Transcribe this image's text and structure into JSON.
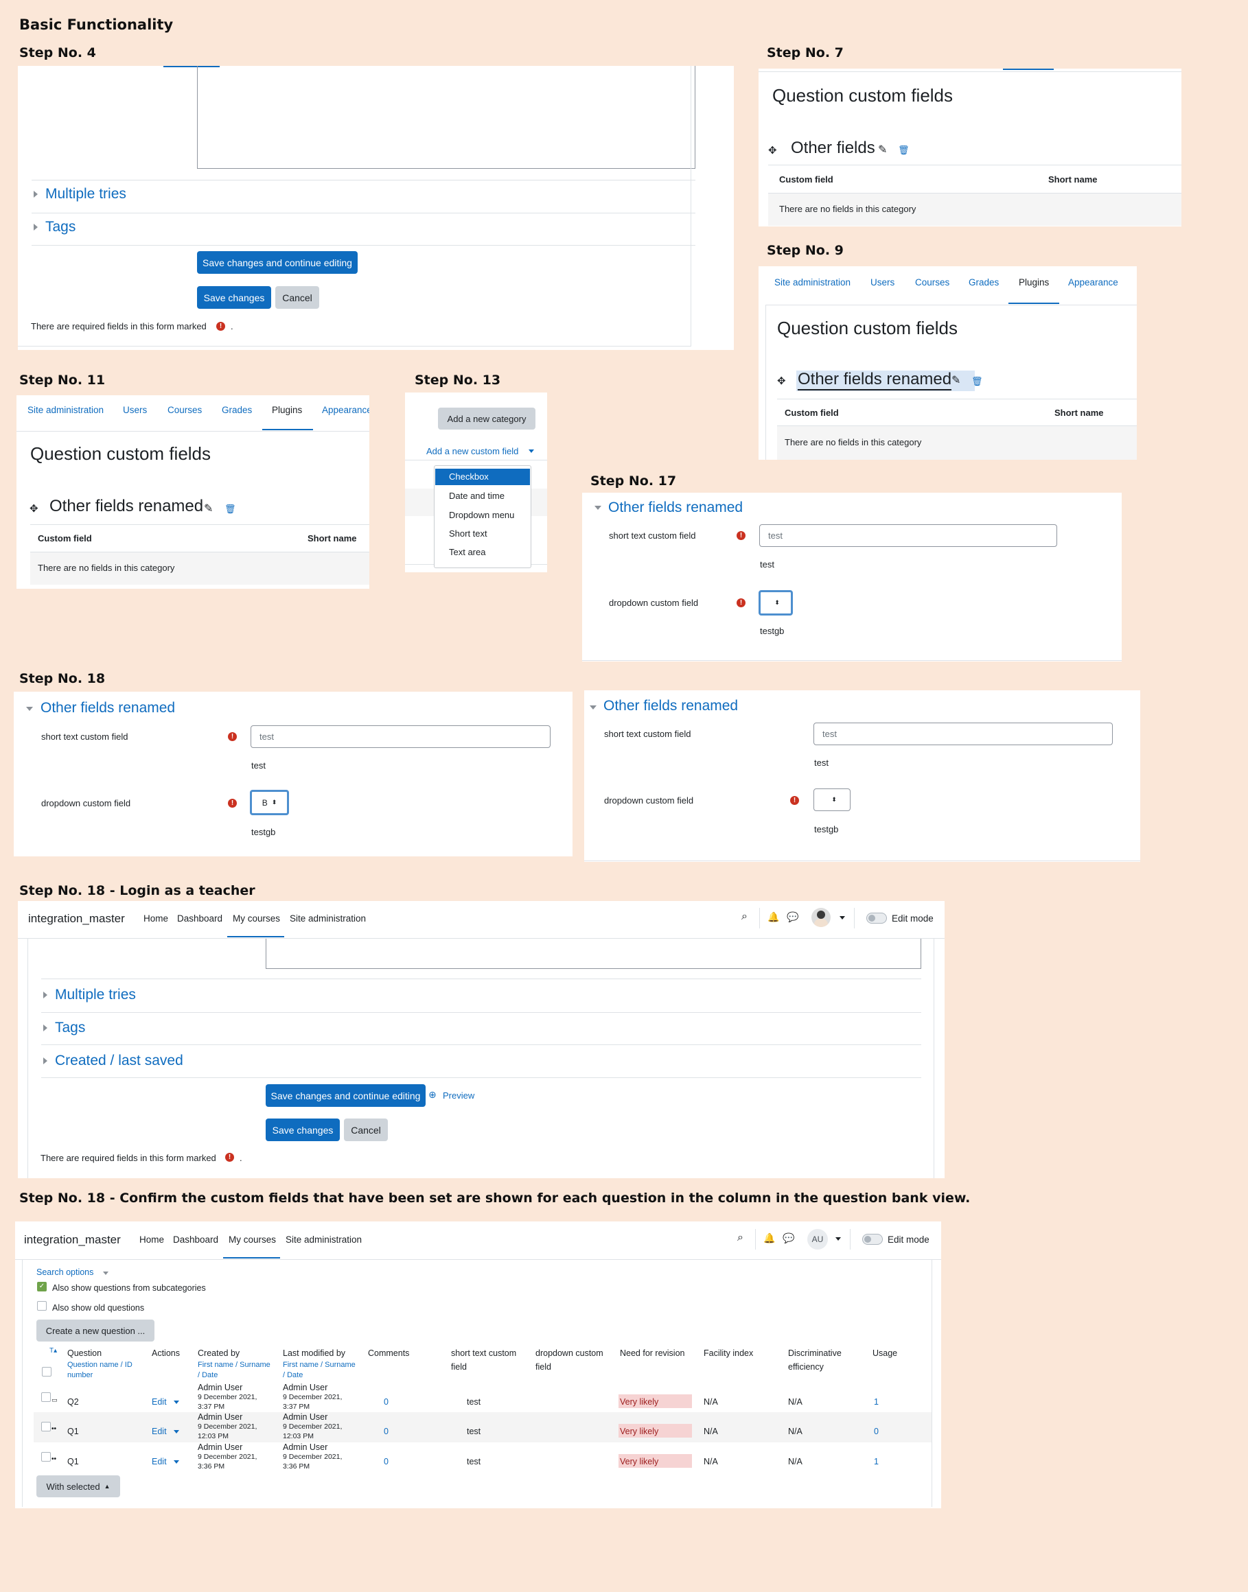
{
  "title": "Basic Functionality",
  "step4": {
    "heading": "Step No. 4",
    "multiple_tries": "Multiple tries",
    "tags": "Tags",
    "save_continue": "Save changes and continue editing",
    "save": "Save changes",
    "cancel": "Cancel",
    "required_note": "There are required fields in this form marked",
    "required_dot": "."
  },
  "step7": {
    "heading": "Step No. 7",
    "page_title": "Question custom fields",
    "category": "Other fields",
    "col_custom_field": "Custom field",
    "col_short_name": "Short name",
    "empty": "There are no fields in this category"
  },
  "step9": {
    "heading": "Step No. 9",
    "tabs": [
      "Site administration",
      "Users",
      "Courses",
      "Grades",
      "Plugins",
      "Appearance"
    ],
    "active_tab": "Plugins",
    "page_title": "Question custom fields",
    "category": "Other fields renamed",
    "col_custom_field": "Custom field",
    "col_short_name": "Short name",
    "empty": "There are no fields in this category"
  },
  "step11": {
    "heading": "Step No. 11",
    "tabs": [
      "Site administration",
      "Users",
      "Courses",
      "Grades",
      "Plugins",
      "Appearance"
    ],
    "page_title": "Question custom fields",
    "category": "Other fields renamed",
    "col_custom_field": "Custom field",
    "col_short_name": "Short name",
    "empty": "There are no fields in this category"
  },
  "step13": {
    "heading": "Step No. 13",
    "add_category": "Add a new category",
    "add_custom_field": "Add a new custom field",
    "menu": [
      "Checkbox",
      "Date and time",
      "Dropdown menu",
      "Short text",
      "Text area"
    ],
    "selected": "Checkbox"
  },
  "step17": {
    "heading": "Step No. 17",
    "section": "Other fields renamed",
    "short_text_label": "short text custom field",
    "short_text_value": "test",
    "short_text_help": "test",
    "dropdown_label": "dropdown custom field",
    "dropdown_value": "",
    "dropdown_help": "testgb"
  },
  "step18a": {
    "heading": "Step No. 18",
    "section": "Other fields renamed",
    "short_text_label": "short text custom field",
    "short_text_value": "test",
    "short_text_help": "test",
    "dropdown_label": "dropdown custom field",
    "dropdown_value": "B",
    "dropdown_help": "testgb"
  },
  "step18b": {
    "section": "Other fields renamed",
    "short_text_label": "short text custom field",
    "short_text_value": "test",
    "short_text_help": "test",
    "dropdown_label": "dropdown custom field",
    "dropdown_value": "",
    "dropdown_help": "testgb"
  },
  "step18teacher": {
    "heading": "Step No. 18 - Login as a teacher",
    "site": "integration_master",
    "nav": [
      "Home",
      "Dashboard",
      "My courses",
      "Site administration"
    ],
    "active_nav": "My courses",
    "edit_mode": "Edit mode",
    "multiple_tries": "Multiple tries",
    "tags": "Tags",
    "created": "Created / last saved",
    "save_continue": "Save changes and continue editing",
    "preview": "Preview",
    "save": "Save changes",
    "cancel": "Cancel",
    "required_note": "There are required fields in this form marked",
    "required_dot": "."
  },
  "step18bank": {
    "heading": "Step No. 18 - Confirm the custom fields that have been set are shown for each question in the column in the question bank view.",
    "site": "integration_master",
    "nav": [
      "Home",
      "Dashboard",
      "My courses",
      "Site administration"
    ],
    "edit_mode": "Edit mode",
    "avatar": "AU",
    "search_options": "Search options",
    "show_sub": "Also show questions from subcategories",
    "show_old": "Also show old questions",
    "create_new": "Create a new question ...",
    "headers": {
      "t": "T",
      "question": "Question",
      "question_sub1": "Question name / ID",
      "question_sub2": "number",
      "actions": "Actions",
      "created_by": "Created by",
      "created_sub1": "First name / Surname",
      "created_sub2": "/ Date",
      "modified_by": "Last modified by",
      "modified_sub1": "First name / Surname",
      "modified_sub2": "/ Date",
      "comments": "Comments",
      "short_text": "short text custom",
      "short_text2": "field",
      "dropdown": "dropdown custom",
      "dropdown2": "field",
      "need_revision": "Need for revision",
      "facility": "Facility index",
      "disc": "Discriminative",
      "disc2": "efficiency",
      "usage": "Usage"
    },
    "rows": [
      {
        "name": "Q2",
        "edit": "Edit",
        "creator": "Admin User",
        "created_date": "9 December 2021,",
        "created_time": "3:37 PM",
        "modifier": "Admin User",
        "modified_date": "9 December 2021,",
        "modified_time": "3:37 PM",
        "comments": "0",
        "short_text": "test",
        "dropdown": "",
        "revision": "Very likely",
        "facility": "N/A",
        "disc": "N/A",
        "usage": "1"
      },
      {
        "name": "Q1",
        "edit": "Edit",
        "creator": "Admin User",
        "created_date": "9 December 2021,",
        "created_time": "12:03 PM",
        "modifier": "Admin User",
        "modified_date": "9 December 2021,",
        "modified_time": "12:03 PM",
        "comments": "0",
        "short_text": "test",
        "dropdown": "",
        "revision": "Very likely",
        "facility": "N/A",
        "disc": "N/A",
        "usage": "0"
      },
      {
        "name": "Q1",
        "edit": "Edit",
        "creator": "Admin User",
        "created_date": "9 December 2021,",
        "created_time": "3:36 PM",
        "modifier": "Admin User",
        "modified_date": "9 December 2021,",
        "modified_time": "3:36 PM",
        "comments": "0",
        "short_text": "test",
        "dropdown": "",
        "revision": "Very likely",
        "facility": "N/A",
        "disc": "N/A",
        "usage": "1"
      }
    ],
    "with_selected": "With selected"
  },
  "colors": {
    "background": "#fbe7d8",
    "link": "#0f6cbf",
    "primary": "#0f6cbf",
    "danger": "#ca3120",
    "revision_bg": "#f6d3d3"
  }
}
